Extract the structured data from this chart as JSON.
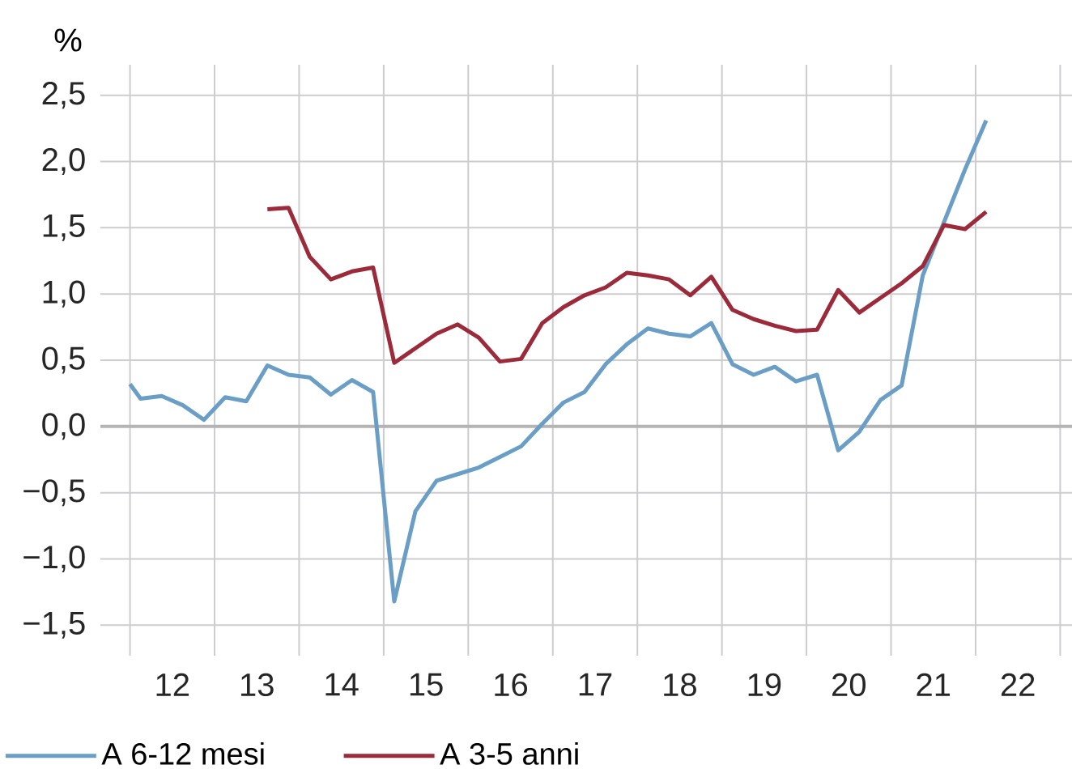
{
  "chart_data": {
    "type": "line",
    "ylabel": "%",
    "series": [
      {
        "name": "A 6-12 mesi",
        "color": "#6a9ec5",
        "x": [
          11.5,
          11.625,
          11.875,
          12.125,
          12.375,
          12.625,
          12.875,
          13.125,
          13.375,
          13.625,
          13.875,
          14.125,
          14.375,
          14.625,
          14.875,
          15.125,
          15.375,
          15.625,
          15.875,
          16.125,
          16.375,
          16.625,
          16.875,
          17.125,
          17.375,
          17.625,
          17.875,
          18.125,
          18.375,
          18.625,
          18.875,
          19.125,
          19.375,
          19.625,
          19.875,
          20.125,
          20.375,
          20.625,
          20.875,
          21.125,
          21.375,
          21.625
        ],
        "values": [
          0.32,
          0.21,
          0.23,
          0.16,
          0.05,
          0.22,
          0.19,
          0.46,
          0.39,
          0.37,
          0.24,
          0.35,
          0.26,
          -1.32,
          -0.64,
          -0.41,
          -0.36,
          -0.31,
          -0.23,
          -0.15,
          0.02,
          0.18,
          0.26,
          0.47,
          0.62,
          0.74,
          0.7,
          0.68,
          0.78,
          0.47,
          0.39,
          0.45,
          0.34,
          0.39,
          -0.18,
          -0.04,
          0.2,
          0.31,
          1.14,
          1.54,
          1.94,
          2.31
        ]
      },
      {
        "name": "A 3-5 anni",
        "color": "#9b2a3a",
        "x": [
          13.125,
          13.375,
          13.625,
          13.875,
          14.125,
          14.375,
          14.625,
          14.875,
          15.125,
          15.375,
          15.625,
          15.875,
          16.125,
          16.375,
          16.625,
          16.875,
          17.125,
          17.375,
          17.625,
          17.875,
          18.125,
          18.375,
          18.625,
          18.875,
          19.125,
          19.375,
          19.625,
          19.875,
          20.125,
          20.375,
          20.625,
          20.875,
          21.125,
          21.375,
          21.625
        ],
        "values": [
          1.64,
          1.65,
          1.28,
          1.11,
          1.17,
          1.2,
          0.48,
          0.59,
          0.7,
          0.77,
          0.67,
          0.49,
          0.51,
          0.78,
          0.9,
          0.99,
          1.05,
          1.16,
          1.14,
          1.11,
          0.99,
          1.13,
          0.88,
          0.81,
          0.76,
          0.72,
          0.73,
          1.03,
          0.86,
          0.97,
          1.08,
          1.21,
          1.52,
          1.49,
          1.62
        ]
      }
    ],
    "xlim": [
      11.15,
      22.64
    ],
    "ylim": [
      -1.73,
      2.73
    ],
    "xticks": [
      {
        "value": 11.5,
        "label": null
      },
      {
        "value": 12.5,
        "label": null
      },
      {
        "value": 13.5,
        "label": null
      },
      {
        "value": 14.5,
        "label": null
      },
      {
        "value": 15.5,
        "label": null
      },
      {
        "value": 16.5,
        "label": null
      },
      {
        "value": 17.5,
        "label": null
      },
      {
        "value": 18.5,
        "label": null
      },
      {
        "value": 19.5,
        "label": null
      },
      {
        "value": 20.5,
        "label": null
      },
      {
        "value": 21.5,
        "label": null
      },
      {
        "value": 22.5,
        "label": null
      },
      12,
      13,
      14,
      15,
      16,
      17,
      18,
      19,
      20,
      21,
      22
    ],
    "yticks": [
      {
        "value": -1.5,
        "label": "−1,5"
      },
      {
        "value": -1.0,
        "label": "−1,0"
      },
      {
        "value": -0.5,
        "label": "−0,5"
      },
      {
        "value": 0.0,
        "label": "0,0"
      },
      {
        "value": 0.5,
        "label": "0,5"
      },
      {
        "value": 1.0,
        "label": "1,0"
      },
      {
        "value": 1.5,
        "label": "1,5"
      },
      {
        "value": 2.0,
        "label": "2,0"
      },
      {
        "value": 2.5,
        "label": "2,5"
      }
    ],
    "ref_lines": [
      {
        "axis": "y",
        "value": 0,
        "color": "#b4b4b4"
      }
    ],
    "grid": true,
    "legend": "bottom left",
    "marker": "none",
    "line_style": "solid"
  }
}
